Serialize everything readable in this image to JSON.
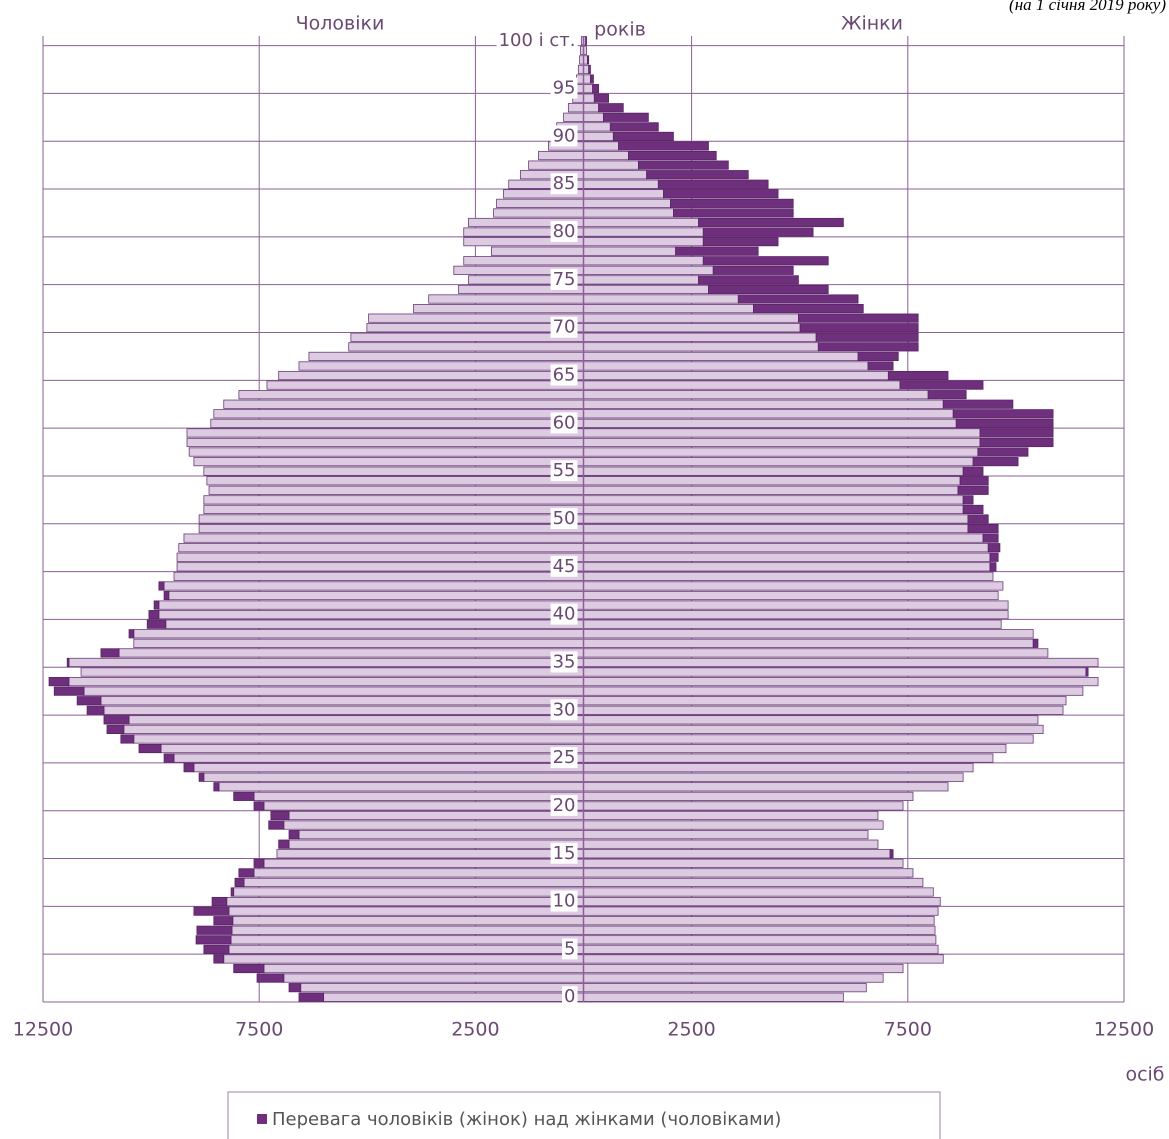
{
  "chart_data": {
    "type": "pyramid",
    "subtitle": "(на 1 січня 2019 року)",
    "y_label": "років",
    "x_label": "осіб",
    "legend_label": "Перевага чоловіків (жінок) над жінками (чоловіками)",
    "excess_color": "#6e2f7c",
    "categories": [
      "0",
      null,
      null,
      null,
      null,
      "5",
      null,
      null,
      null,
      null,
      "10",
      null,
      null,
      null,
      null,
      "15",
      null,
      null,
      null,
      null,
      "20",
      null,
      null,
      null,
      null,
      "25",
      null,
      null,
      null,
      null,
      "30",
      null,
      null,
      null,
      null,
      "35",
      null,
      null,
      null,
      null,
      "40",
      null,
      null,
      null,
      null,
      "45",
      null,
      null,
      null,
      null,
      "50",
      null,
      null,
      null,
      null,
      "55",
      null,
      null,
      null,
      null,
      "60",
      null,
      null,
      null,
      null,
      "65",
      null,
      null,
      null,
      null,
      "70",
      null,
      null,
      null,
      null,
      "75",
      null,
      null,
      null,
      null,
      "80",
      null,
      null,
      null,
      null,
      "85",
      null,
      null,
      null,
      null,
      "90",
      null,
      null,
      null,
      null,
      "95",
      null,
      null,
      null,
      null,
      "100 і ст."
    ],
    "series": [
      {
        "name": "Чоловіки",
        "color": "#dccbe1",
        "values": [
          6580,
          6810,
          7550,
          8090,
          8550,
          8780,
          8960,
          8940,
          8550,
          9010,
          8590,
          8150,
          8060,
          7970,
          7620,
          7090,
          7050,
          6810,
          7280,
          7230,
          7620,
          8090,
          8550,
          8890,
          9240,
          9700,
          10280,
          10700,
          11020,
          11090,
          11480,
          11710,
          12240,
          12360,
          11620,
          11940,
          11160,
          10400,
          10510,
          10090,
          10050,
          9930,
          9700,
          9820,
          9470,
          9400,
          9400,
          9360,
          9240,
          8890,
          8890,
          8780,
          8780,
          8660,
          8710,
          8780,
          9010,
          9120,
          9170,
          9170,
          8620,
          8550,
          8320,
          7970,
          7320,
          7050,
          6580,
          6350,
          5430,
          5380,
          5010,
          4970,
          3930,
          3580,
          2890,
          2660,
          3000,
          2770,
          2130,
          2770,
          2770,
          2660,
          2080,
          2010,
          1850,
          1730,
          1460,
          1270,
          1040,
          810,
          690,
          620,
          460,
          350,
          250,
          210,
          160,
          120,
          90,
          70,
          50
        ]
      },
      {
        "name": "Жінки",
        "color": "#dccbe1",
        "values": [
          6010,
          6540,
          6930,
          7390,
          8320,
          8200,
          8150,
          8130,
          8110,
          8200,
          8250,
          8090,
          7850,
          7620,
          7390,
          7160,
          6810,
          6580,
          6930,
          6810,
          7390,
          7620,
          8430,
          8780,
          9010,
          9470,
          9770,
          10400,
          10630,
          10510,
          11090,
          11160,
          11550,
          11900,
          11670,
          11900,
          10740,
          10510,
          10400,
          9660,
          9820,
          9820,
          9590,
          9700,
          9470,
          9540,
          9590,
          9630,
          9590,
          9590,
          9360,
          9240,
          9010,
          9360,
          9360,
          9240,
          10050,
          10280,
          10860,
          10860,
          10860,
          10860,
          9930,
          8850,
          9240,
          8430,
          7160,
          7280,
          7740,
          7740,
          7740,
          7740,
          6470,
          6350,
          5660,
          4970,
          4850,
          5660,
          4040,
          4500,
          5310,
          6010,
          4850,
          4850,
          4500,
          4270,
          3810,
          3350,
          3070,
          2890,
          2080,
          1730,
          1500,
          920,
          580,
          350,
          230,
          160,
          120,
          70,
          70
        ]
      }
    ],
    "xlim": [
      -12500,
      12500
    ],
    "xticks": [
      {
        "value": -12500,
        "label": "12500"
      },
      {
        "value": -7500,
        "label": "7500"
      },
      {
        "value": -2500,
        "label": "2500"
      },
      2500,
      7500,
      12500
    ],
    "grid": true
  }
}
